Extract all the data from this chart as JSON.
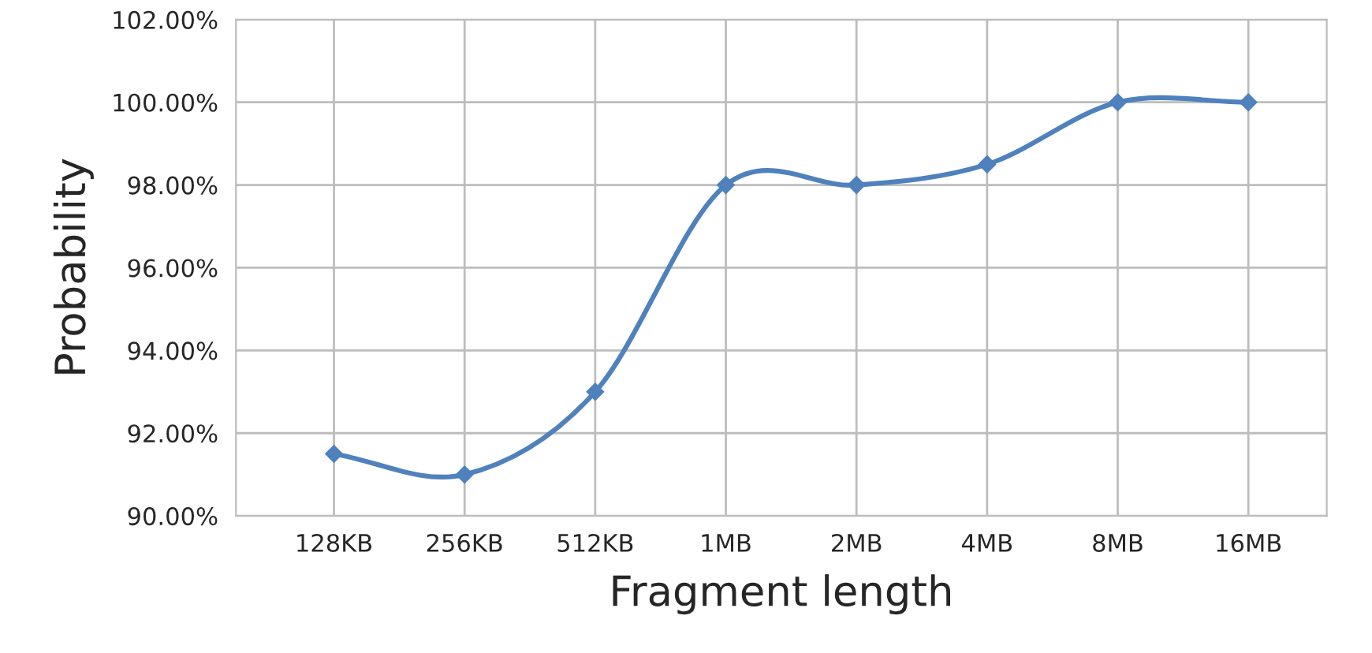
{
  "chart_data": {
    "type": "line",
    "xlabel": "Fragment length",
    "ylabel": "Probability",
    "categories": [
      "128KB",
      "256KB",
      "512KB",
      "1MB",
      "2MB",
      "4MB",
      "8MB",
      "16MB"
    ],
    "series": [
      {
        "color": "#4f81bd",
        "values": [
          91.5,
          91.0,
          93.0,
          98.0,
          98.0,
          98.5,
          100.0,
          100.0
        ]
      }
    ],
    "ylim": [
      90,
      102
    ],
    "yticks": [
      {
        "value": 90,
        "label": "90.00%"
      },
      {
        "value": 92,
        "label": "92.00%"
      },
      {
        "value": 94,
        "label": "94.00%"
      },
      {
        "value": 96,
        "label": "96.00%"
      },
      {
        "value": 98,
        "label": "98.00%"
      },
      {
        "value": 100,
        "label": "100.00%"
      },
      {
        "value": 102,
        "label": "102.00%"
      }
    ],
    "grid": true,
    "marker": "diamond",
    "line_style": "solid"
  }
}
